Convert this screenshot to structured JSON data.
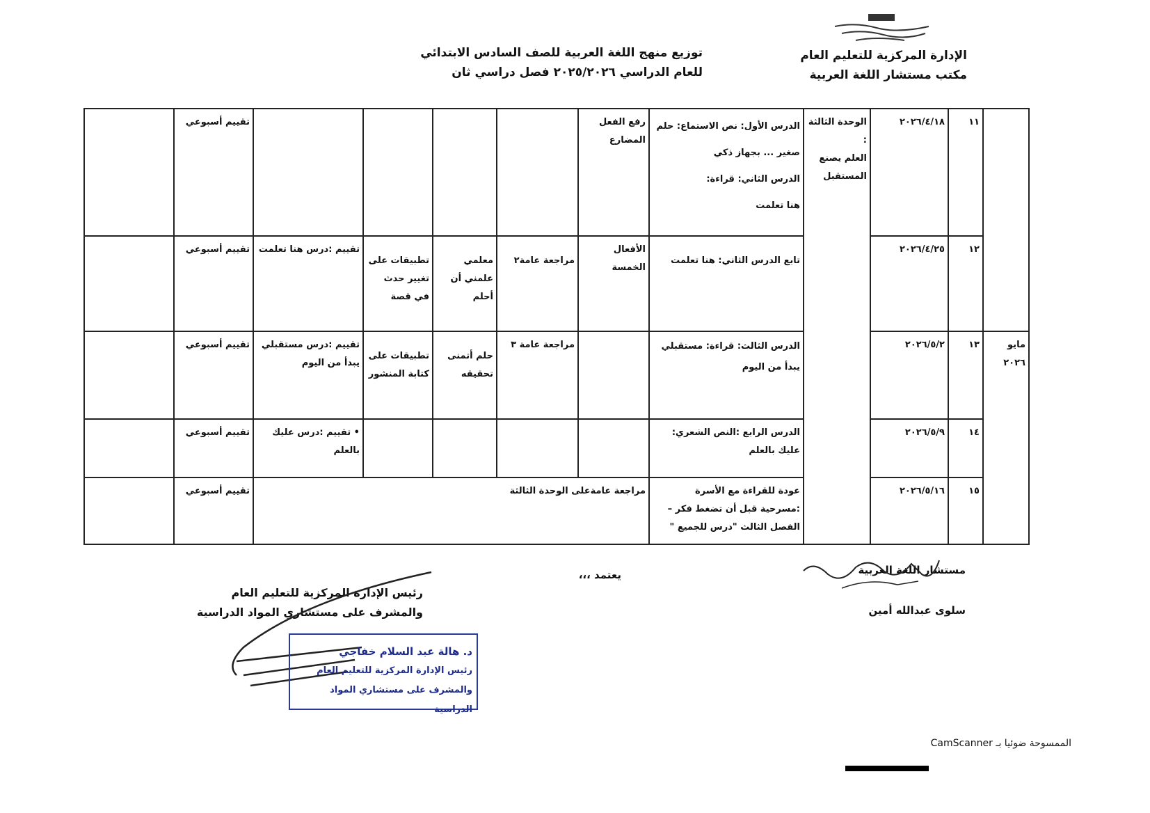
{
  "header": {
    "logo_text": "الإدارة المركزية للتعليم العام",
    "org_line1": "الإدارة المركزية للتعليم العام",
    "org_line2": "مكتب مستشار اللغة العربية",
    "title_line1": "توزيع منهج اللغة العربية للصف السادس الابتدائي",
    "title_line2": "للعام الدراسي ٢٠٢٥/٢٠٢٦  فصل دراسي ثان"
  },
  "table": {
    "unit": [
      "الوحدة الثالثة",
      ":",
      "العلم يصنع",
      "المستقبل"
    ],
    "month": [
      "مايو",
      "٢٠٢٦"
    ],
    "rows": [
      {
        "week": "١١",
        "date": "٢٠٢٦/٤/١٨",
        "lesson": [
          "الدرس الأول:  نص الاستماع: حلم صغير ... بجهاز ذكي",
          "الدرس الثاني: قراءة:",
          "هنا تعلمت"
        ],
        "grammar": [
          "رفع الفعل",
          "المضارع"
        ],
        "review": "",
        "reading": "",
        "applications": "",
        "evaluation": "",
        "weekly": "تقييم أسبوعي"
      },
      {
        "week": "١٢",
        "date": "٢٠٢٦/٤/٢٥",
        "lesson": [
          "تابع الدرس الثاني:  هنا تعلمت"
        ],
        "grammar": [
          "الأفعال الخمسة"
        ],
        "review": "مراجعة عامة٢",
        "reading": "معلمي علمني أن أحلم",
        "applications": "تطبيقات على تغيير حدث في قصة",
        "evaluation": "تقييم :درس هنا تعلمت",
        "weekly": "تقييم أسبوعي"
      },
      {
        "week": "١٣",
        "date": "٢٠٢٦/٥/٢",
        "lesson": [
          "الدرس الثالث: قراءة: مستقبلي يبدأ من اليوم"
        ],
        "grammar": [],
        "review": "مراجعة عامة ٣",
        "reading": "حلم أتمنى تحقيقه",
        "applications": "تطبيقات على كتابة المنشور",
        "evaluation": "تقييم :درس مستقبلي يبدأ من اليوم",
        "weekly": "تقييم أسبوعي"
      },
      {
        "week": "١٤",
        "date": "٢٠٢٦/٥/٩",
        "lesson": [
          "الدرس الرابع :النص الشعري:",
          "عليك بالعلم"
        ],
        "grammar": [],
        "review": "",
        "reading": "",
        "applications": "",
        "evaluation": "• تقييم :درس عليك بالعلم",
        "weekly": "تقييم أسبوعي"
      },
      {
        "week": "١٥",
        "date": "٢٠٢٦/٥/١٦",
        "lesson": [
          "عودة للقراءة مع الأسرة :مسرحية قبل أن تضغط فكر – الفصل الثالث \"درس للجميع \""
        ],
        "merged": "مراجعة عامةعلى الوحدة الثالثة",
        "weekly": "تقييم أسبوعي"
      }
    ]
  },
  "footer": {
    "approve": "يعتمد ،،،",
    "advisor_title": "مستشار اللغة العربية",
    "advisor_name": "سلوى عبدالله أمين",
    "head_line1": "رئيس الإدارة المركزية للتعليم العام",
    "head_line2": "والمشرف على مستشاري المواد الدراسية",
    "stamp_name": "د. هالة عبد السلام خفاجي",
    "stamp_line2": "رئيس الإدارة المركزية للتعليم العام",
    "stamp_line3": "والمشرف على مستشاري المواد الدراسية",
    "scanner": "الممسوحة ضوئيا بـ CamScanner"
  },
  "colors": {
    "ink": "#111111",
    "stamp": "#1d2c8a"
  }
}
